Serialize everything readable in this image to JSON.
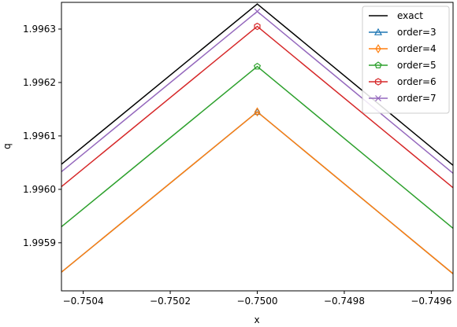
{
  "chart_data": {
    "type": "line",
    "xlabel": "x",
    "ylabel": "q",
    "xlim": [
      -0.75045,
      -0.74955
    ],
    "ylim": [
      1.99581,
      1.99635
    ],
    "x_ticks": [
      -0.7504,
      -0.7502,
      -0.75,
      -0.7498,
      -0.7496
    ],
    "x_tick_labels": [
      "−0.7504",
      "−0.7502",
      "−0.7500",
      "−0.7498",
      "−0.7496"
    ],
    "y_ticks": [
      1.9959,
      1.996,
      1.9961,
      1.9962,
      1.9963
    ],
    "y_tick_labels": [
      "1.9959",
      "1.9960",
      "1.9961",
      "1.9962",
      "1.9963"
    ],
    "grid": false,
    "legend_position": "top-right",
    "series": [
      {
        "name": "exact",
        "color": "#000000",
        "marker": "none",
        "x": [
          -0.75045,
          -0.75,
          -0.74955
        ],
        "y": [
          1.996047,
          1.996347,
          1.996045
        ]
      },
      {
        "name": "order=3",
        "color": "#1f77b4",
        "marker": "triangle",
        "x": [
          -0.75045,
          -0.75,
          -0.74955
        ],
        "y": [
          1.995845,
          1.996145,
          1.995842
        ]
      },
      {
        "name": "order=4",
        "color": "#ff7f0e",
        "marker": "diamond",
        "x": [
          -0.75045,
          -0.75,
          -0.74955
        ],
        "y": [
          1.995845,
          1.996145,
          1.995842
        ]
      },
      {
        "name": "order=5",
        "color": "#2ca02c",
        "marker": "pentagon",
        "x": [
          -0.75045,
          -0.75,
          -0.74955
        ],
        "y": [
          1.99593,
          1.99623,
          1.995927
        ]
      },
      {
        "name": "order=6",
        "color": "#d62728",
        "marker": "hexagon",
        "x": [
          -0.75045,
          -0.75,
          -0.74955
        ],
        "y": [
          1.996005,
          1.996305,
          1.996003
        ]
      },
      {
        "name": "order=7",
        "color": "#9467bd",
        "marker": "x",
        "x": [
          -0.75045,
          -0.75,
          -0.74955
        ],
        "y": [
          1.996033,
          1.996333,
          1.99603
        ]
      }
    ]
  }
}
